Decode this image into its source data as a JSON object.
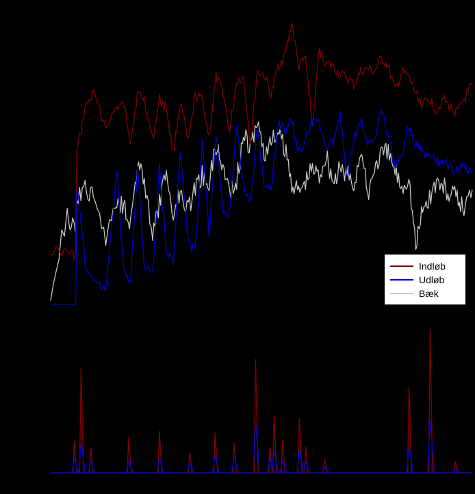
{
  "chart_data": [
    {
      "type": "line",
      "panel": "upper",
      "title": "",
      "xlabel": "",
      "ylabel": "",
      "grid": false,
      "legend_position": "right",
      "x": [
        0,
        12,
        18,
        19,
        25,
        31,
        40,
        48,
        53,
        58,
        63,
        68,
        74,
        79,
        84,
        89,
        94,
        100,
        105,
        110,
        115,
        120,
        125,
        130,
        135,
        140,
        145,
        150,
        155,
        160,
        165,
        170,
        175,
        180,
        185,
        190,
        195,
        200,
        205,
        210,
        215,
        220,
        225,
        230,
        235,
        240,
        245,
        250,
        255,
        260,
        265,
        270,
        275,
        280,
        285,
        290,
        295,
        300,
        306
      ],
      "series": [
        {
          "name": "Indløb",
          "color": "#800000",
          "values": [
            0.85,
            0.86,
            0.87,
            0.5,
            0.33,
            0.28,
            0.4,
            0.33,
            0.32,
            0.45,
            0.28,
            0.3,
            0.45,
            0.3,
            0.33,
            0.5,
            0.31,
            0.46,
            0.29,
            0.3,
            0.44,
            0.22,
            0.27,
            0.42,
            0.23,
            0.22,
            0.46,
            0.2,
            0.21,
            0.29,
            0.18,
            0.14,
            0.02,
            0.18,
            0.15,
            0.4,
            0.12,
            0.17,
            0.18,
            0.21,
            0.22,
            0.25,
            0.2,
            0.19,
            0.2,
            0.15,
            0.18,
            0.27,
            0.2,
            0.22,
            0.28,
            0.32,
            0.3,
            0.34,
            0.3,
            0.33,
            0.35,
            0.3,
            0.25
          ]
        },
        {
          "name": "Udløb",
          "color": "#0000cd",
          "values": [
            1.22,
            1.2,
            1.21,
            0.62,
            0.9,
            0.97,
            0.99,
            0.56,
            0.93,
            0.97,
            0.55,
            0.9,
            0.94,
            0.55,
            0.86,
            0.89,
            0.49,
            0.83,
            0.85,
            0.46,
            0.8,
            0.42,
            0.7,
            0.72,
            0.4,
            0.62,
            0.67,
            0.4,
            0.63,
            0.63,
            0.38,
            0.42,
            0.38,
            0.5,
            0.44,
            0.38,
            0.39,
            0.48,
            0.46,
            0.36,
            0.58,
            0.45,
            0.37,
            0.47,
            0.44,
            0.33,
            0.44,
            0.55,
            0.5,
            0.4,
            0.47,
            0.5,
            0.51,
            0.53,
            0.53,
            0.55,
            0.56,
            0.55,
            0.57
          ]
        },
        {
          "name": "Bæk",
          "color": "#c8c8c8",
          "values": [
            1.0,
            0.72,
            0.8,
            0.67,
            0.63,
            0.66,
            0.8,
            0.67,
            0.68,
            0.75,
            0.55,
            0.59,
            0.81,
            0.68,
            0.57,
            0.72,
            0.63,
            0.7,
            0.62,
            0.58,
            0.6,
            0.47,
            0.55,
            0.63,
            0.6,
            0.43,
            0.48,
            0.38,
            0.5,
            0.46,
            0.42,
            0.48,
            0.6,
            0.64,
            0.6,
            0.55,
            0.58,
            0.5,
            0.6,
            0.56,
            0.57,
            0.62,
            0.48,
            0.65,
            0.55,
            0.5,
            0.5,
            0.56,
            0.62,
            0.58,
            0.84,
            0.7,
            0.66,
            0.6,
            0.62,
            0.65,
            0.66,
            0.7,
            0.63
          ]
        }
      ]
    },
    {
      "type": "line",
      "panel": "lower",
      "title": "",
      "xlabel": "",
      "ylabel": "",
      "grid": false,
      "peaks": [
        {
          "x": 0.056,
          "dark_red": 0.22,
          "blue": 0.1
        },
        {
          "x": 0.072,
          "dark_red": 0.73,
          "blue": 0.2
        },
        {
          "x": 0.095,
          "dark_red": 0.17,
          "blue": 0.08
        },
        {
          "x": 0.185,
          "dark_red": 0.25,
          "blue": 0.08
        },
        {
          "x": 0.258,
          "dark_red": 0.29,
          "blue": 0.1
        },
        {
          "x": 0.33,
          "dark_red": 0.14,
          "blue": 0.07
        },
        {
          "x": 0.39,
          "dark_red": 0.28,
          "blue": 0.12
        },
        {
          "x": 0.435,
          "dark_red": 0.21,
          "blue": 0.11
        },
        {
          "x": 0.486,
          "dark_red": 0.79,
          "blue": 0.35
        },
        {
          "x": 0.52,
          "dark_red": 0.18,
          "blue": 0.1
        },
        {
          "x": 0.53,
          "dark_red": 0.4,
          "blue": 0.15
        },
        {
          "x": 0.55,
          "dark_red": 0.23,
          "blue": 0.09
        },
        {
          "x": 0.59,
          "dark_red": 0.38,
          "blue": 0.16
        },
        {
          "x": 0.605,
          "dark_red": 0.18,
          "blue": 0.08
        },
        {
          "x": 0.65,
          "dark_red": 0.1,
          "blue": 0.04
        },
        {
          "x": 0.85,
          "dark_red": 0.6,
          "blue": 0.18
        },
        {
          "x": 0.9,
          "dark_red": 1.0,
          "blue": 0.36
        },
        {
          "x": 0.96,
          "dark_red": 0.08,
          "blue": 0.03
        }
      ]
    }
  ],
  "legend": {
    "items": [
      {
        "label": "Indløb",
        "color": "#800000"
      },
      {
        "label": "Udløb",
        "color": "#0000cd"
      },
      {
        "label": "Bæk",
        "color": "#c8c8c8"
      }
    ]
  }
}
